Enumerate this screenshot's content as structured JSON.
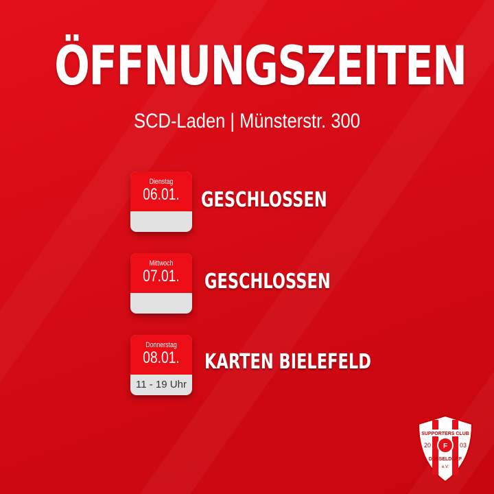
{
  "title": "ÖFFNUNGSZEITEN",
  "subtitle": "SCD-Laden | Münsterstr. 300",
  "entries": [
    {
      "day": "Dienstag",
      "date": "06.01.",
      "hours": "",
      "status": "GESCHLOSSEN"
    },
    {
      "day": "Mittwoch",
      "date": "07.01.",
      "hours": "",
      "status": "GESCHLOSSEN"
    },
    {
      "day": "Donnerstag",
      "date": "08.01.",
      "hours": "11 - 19 Uhr",
      "status": "KARTEN BIELEFELD"
    }
  ],
  "logo": {
    "text_top": "SUPPORTERS CLUB",
    "year_left": "20",
    "year_right": "03",
    "text_bottom": "DÜSSELDORF",
    "suffix": "e.V.",
    "badge": "F95"
  },
  "colors": {
    "background": "#d90b15",
    "card_red": "#ec0d17",
    "card_gray": "#e2e2e2"
  }
}
